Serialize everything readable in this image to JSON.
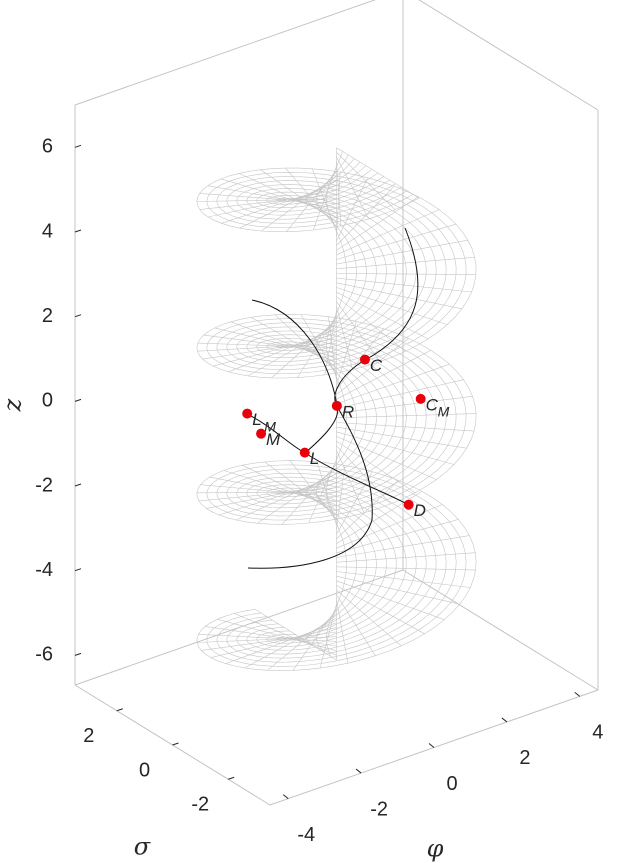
{
  "chart_data": {
    "type": "surface3d",
    "xlabel": "φ",
    "ylabel": "σ",
    "zlabel": "z",
    "xlim": [
      -4.5,
      4.5
    ],
    "ylim": [
      -3.5,
      3.5
    ],
    "zlim": [
      -6.7,
      7
    ],
    "xticks": [
      -4,
      -2,
      0,
      2,
      4
    ],
    "yticks": [
      -2,
      0,
      2
    ],
    "zticks": [
      -6,
      -4,
      -2,
      0,
      2,
      4,
      6
    ],
    "point_color": "#e8000b",
    "points": [
      {
        "label": "C",
        "x": 0.78,
        "y": 0,
        "z": 0.81
      },
      {
        "label": "C",
        "sub": "M",
        "x": 2.31,
        "y": 0,
        "z": -0.58
      },
      {
        "label": "R",
        "x": 0.01,
        "y": 0,
        "z": -0.05
      },
      {
        "label": "L",
        "sub": "M",
        "x": -2.45,
        "y": 0,
        "z": 0.51
      },
      {
        "label": "M",
        "x": -2.07,
        "y": 0,
        "z": -0.08
      },
      {
        "label": "L",
        "x": -0.87,
        "y": 0,
        "z": -0.89
      },
      {
        "label": "D",
        "x": 1.98,
        "y": 0,
        "z": -2.98
      }
    ]
  }
}
